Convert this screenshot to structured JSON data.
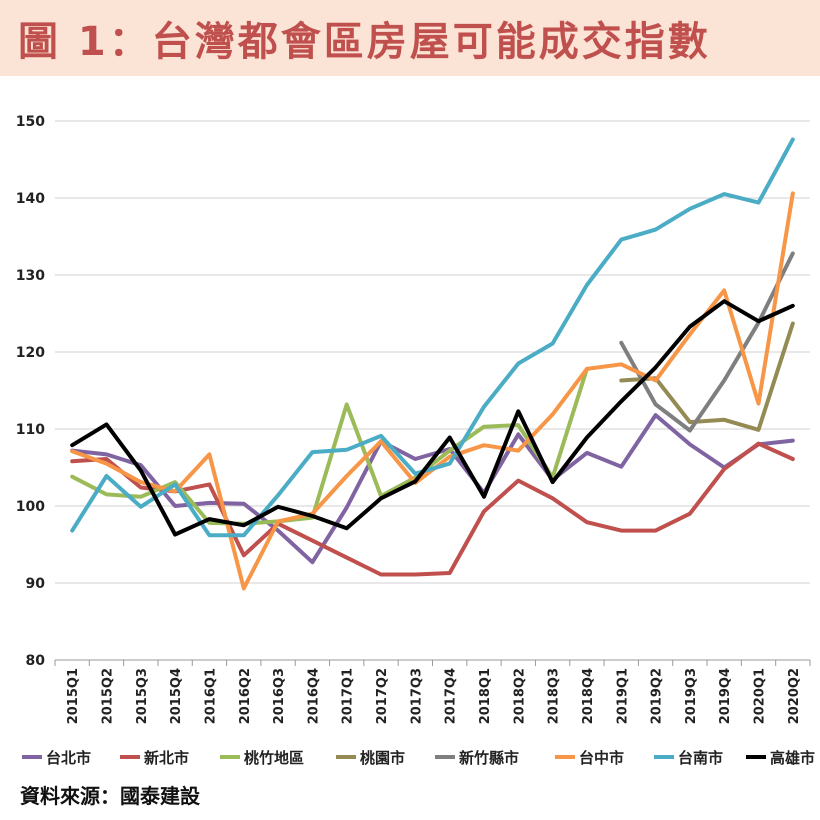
{
  "title": "圖 1：台灣都會區房屋可能成交指數",
  "source": "資料來源：國泰建設",
  "chart_data": {
    "type": "line",
    "title": "圖 1：台灣都會區房屋可能成交指數",
    "xlabel": "",
    "ylabel": "",
    "ylim": [
      80,
      150
    ],
    "yticks": [
      "80",
      "90",
      "100",
      "110",
      "120",
      "130",
      "140",
      "150"
    ],
    "grid": true,
    "legend_position": "bottom",
    "categories": [
      "2015Q1",
      "2015Q2",
      "2015Q3",
      "2015Q4",
      "2016Q1",
      "2016Q2",
      "2016Q3",
      "2016Q4",
      "2017Q1",
      "2017Q2",
      "2017Q3",
      "2017Q4",
      "2018Q1",
      "2018Q2",
      "2018Q3",
      "2018Q4",
      "2019Q1",
      "2019Q2",
      "2019Q3",
      "2019Q4",
      "2020Q1",
      "2020Q2"
    ],
    "series": [
      {
        "name": "台北市",
        "color": "#8064a2",
        "values": [
          107.2,
          106.7,
          105.3,
          100.0,
          100.4,
          100.3,
          96.8,
          92.7,
          99.8,
          108.4,
          106.1,
          107.4,
          101.7,
          109.3,
          103.4,
          106.9,
          105.1,
          111.8,
          108.0,
          105.0,
          108.0,
          108.5
        ]
      },
      {
        "name": "新北市",
        "color": "#c0504d",
        "values": [
          105.8,
          106.1,
          102.4,
          101.9,
          102.8,
          93.6,
          97.7,
          95.5,
          93.3,
          91.1,
          91.1,
          91.3,
          99.3,
          103.3,
          101.0,
          97.9,
          96.8,
          96.8,
          99.0,
          104.8,
          108.1,
          106.1
        ]
      },
      {
        "name": "桃竹地區",
        "color": "#9bbb59",
        "values": [
          103.8,
          101.5,
          101.2,
          103.1,
          97.8,
          97.7,
          98.0,
          98.5,
          113.2,
          101.3,
          103.7,
          107.2,
          110.3,
          110.5,
          103.7,
          117.8,
          null,
          null,
          null,
          null,
          null,
          null
        ]
      },
      {
        "name": "桃園市",
        "color": "#948a54",
        "values": [
          null,
          null,
          null,
          null,
          null,
          null,
          null,
          null,
          null,
          null,
          null,
          null,
          null,
          null,
          null,
          null,
          116.3,
          116.6,
          110.9,
          111.2,
          109.9,
          123.7
        ]
      },
      {
        "name": "新竹縣市",
        "color": "#7f7f7f",
        "values": [
          null,
          null,
          null,
          null,
          null,
          null,
          null,
          null,
          null,
          null,
          null,
          null,
          null,
          null,
          null,
          null,
          121.2,
          113.2,
          109.8,
          116.3,
          123.8,
          132.8
        ]
      },
      {
        "name": "台中市",
        "color": "#f79646",
        "values": [
          107.1,
          105.5,
          103.1,
          101.9,
          106.7,
          89.3,
          98.0,
          99.0,
          103.9,
          108.4,
          103.0,
          106.4,
          107.9,
          107.2,
          111.9,
          117.8,
          118.4,
          116.3,
          122.3,
          128.0,
          113.3,
          140.6
        ]
      },
      {
        "name": "台南市",
        "color": "#4bacc6",
        "values": [
          96.8,
          103.9,
          99.9,
          102.8,
          96.2,
          96.2,
          101.4,
          107.0,
          107.3,
          109.1,
          104.2,
          105.5,
          112.9,
          118.5,
          121.1,
          128.7,
          134.6,
          135.9,
          138.6,
          140.5,
          139.4,
          147.6
        ]
      },
      {
        "name": "高雄市",
        "color": "#000000",
        "values": [
          107.9,
          110.6,
          104.6,
          96.3,
          98.3,
          97.5,
          99.9,
          98.7,
          97.1,
          101.0,
          103.2,
          108.9,
          101.2,
          112.3,
          103.1,
          108.9,
          113.6,
          118.0,
          123.3,
          126.6,
          124.0,
          126.0
        ]
      }
    ]
  }
}
